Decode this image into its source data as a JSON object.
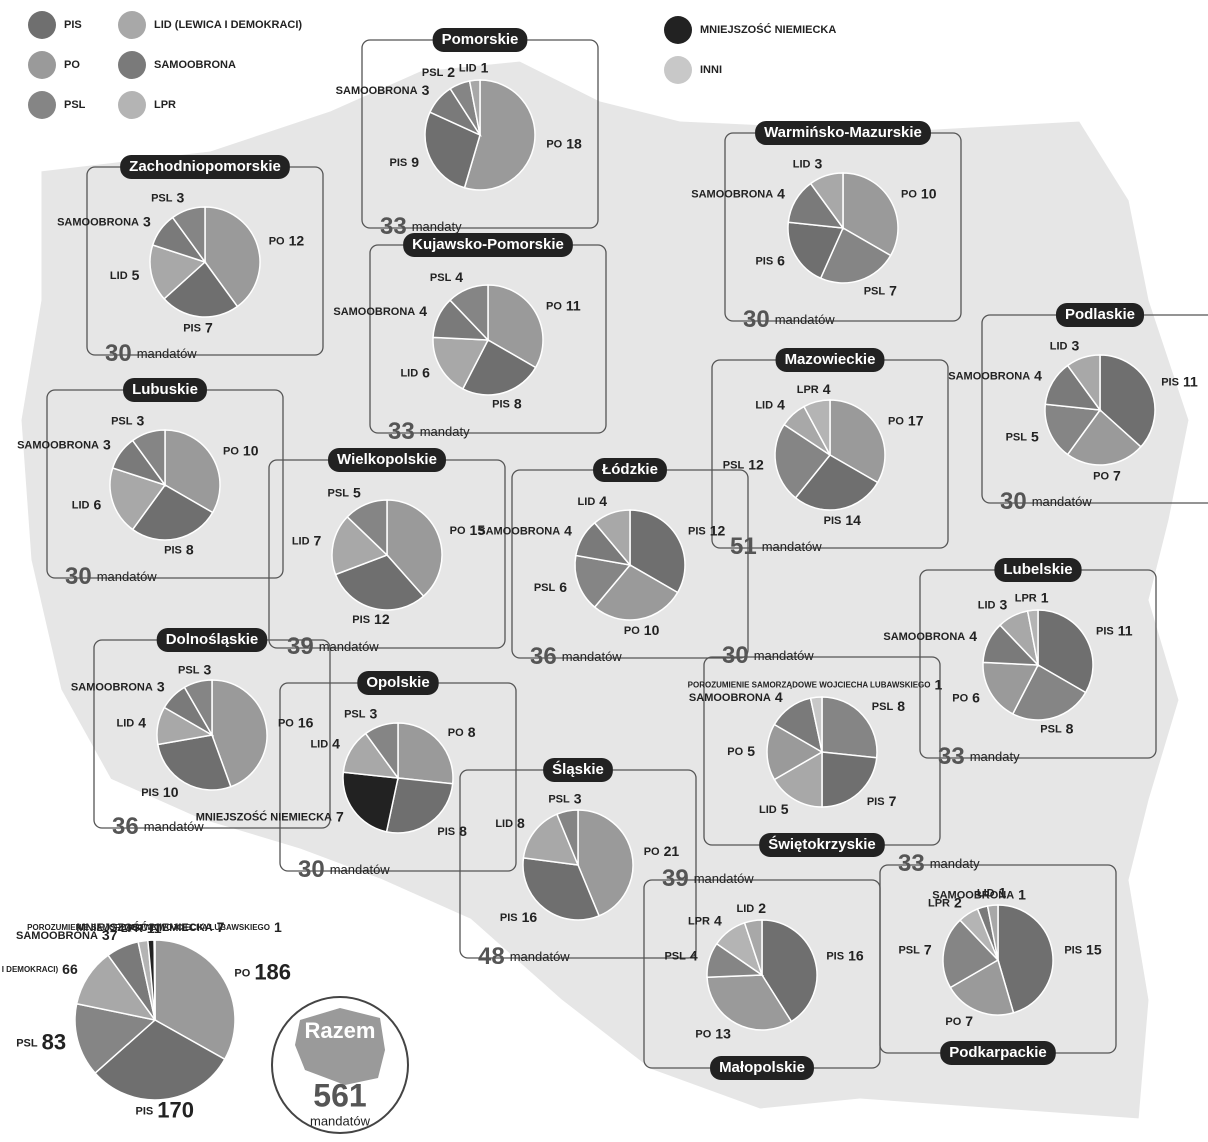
{
  "legend": [
    {
      "name": "PIS",
      "color": "#6f6f6f"
    },
    {
      "name": "PO",
      "color": "#9a9a9a"
    },
    {
      "name": "PSL",
      "color": "#858585"
    },
    {
      "name": "LID (LEWICA I DEMOKRACI)",
      "color": "#a8a8a8"
    },
    {
      "name": "SAMOOBRONA",
      "color": "#7a7a7a"
    },
    {
      "name": "LPR",
      "color": "#b4b4b4"
    },
    {
      "name": "MNIEJSZOŚĆ NIEMIECKA",
      "color": "#222222"
    },
    {
      "name": "INNI",
      "color": "#c8c8c8"
    }
  ],
  "total": {
    "title": "Razem",
    "seats": 561,
    "seats_label": "mandatów"
  },
  "chart_data": [
    {
      "type": "pie",
      "title": "Pomorskie",
      "seats": 33,
      "seats_label": "mandaty",
      "categories": [
        "PO",
        "PIS",
        "SAMOOBRONA",
        "PSL",
        "LID"
      ],
      "values": [
        18,
        9,
        3,
        2,
        1
      ],
      "colors": [
        "#9a9a9a",
        "#6f6f6f",
        "#7a7a7a",
        "#858585",
        "#a8a8a8"
      ]
    },
    {
      "type": "pie",
      "title": "Zachodniopomorskie",
      "seats": 30,
      "seats_label": "mandatów",
      "categories": [
        "PO",
        "PIS",
        "LID",
        "SAMOOBRONA",
        "PSL"
      ],
      "values": [
        12,
        7,
        5,
        3,
        3
      ],
      "colors": [
        "#9a9a9a",
        "#6f6f6f",
        "#a8a8a8",
        "#7a7a7a",
        "#858585"
      ]
    },
    {
      "type": "pie",
      "title": "Warmińsko-Mazurskie",
      "seats": 30,
      "seats_label": "mandatów",
      "categories": [
        "PO",
        "PSL",
        "PIS",
        "SAMOOBRONA",
        "LID"
      ],
      "values": [
        10,
        7,
        6,
        4,
        3
      ],
      "colors": [
        "#9a9a9a",
        "#858585",
        "#6f6f6f",
        "#7a7a7a",
        "#a8a8a8"
      ]
    },
    {
      "type": "pie",
      "title": "Kujawsko-Pomorskie",
      "seats": 33,
      "seats_label": "mandaty",
      "categories": [
        "PO",
        "PIS",
        "LID",
        "SAMOOBRONA",
        "PSL"
      ],
      "values": [
        11,
        8,
        6,
        4,
        4
      ],
      "colors": [
        "#9a9a9a",
        "#6f6f6f",
        "#a8a8a8",
        "#7a7a7a",
        "#858585"
      ]
    },
    {
      "type": "pie",
      "title": "Mazowieckie",
      "seats": 51,
      "seats_label": "mandatów",
      "categories": [
        "PO",
        "PIS",
        "PSL",
        "LID",
        "LPR"
      ],
      "values": [
        17,
        14,
        12,
        4,
        4
      ],
      "colors": [
        "#9a9a9a",
        "#6f6f6f",
        "#858585",
        "#a8a8a8",
        "#b4b4b4"
      ]
    },
    {
      "type": "pie",
      "title": "Podlaskie",
      "seats": 30,
      "seats_label": "mandatów",
      "categories": [
        "PIS",
        "PO",
        "PSL",
        "SAMOOBRONA",
        "LID"
      ],
      "values": [
        11,
        7,
        5,
        4,
        3
      ],
      "colors": [
        "#6f6f6f",
        "#9a9a9a",
        "#858585",
        "#7a7a7a",
        "#a8a8a8"
      ]
    },
    {
      "type": "pie",
      "title": "Lubuskie",
      "seats": 30,
      "seats_label": "mandatów",
      "categories": [
        "PO",
        "PIS",
        "LID",
        "SAMOOBRONA",
        "PSL"
      ],
      "values": [
        10,
        8,
        6,
        3,
        3
      ],
      "colors": [
        "#9a9a9a",
        "#6f6f6f",
        "#a8a8a8",
        "#7a7a7a",
        "#858585"
      ]
    },
    {
      "type": "pie",
      "title": "Wielkopolskie",
      "seats": 39,
      "seats_label": "mandatów",
      "categories": [
        "PO",
        "PIS",
        "LID",
        "PSL"
      ],
      "values": [
        15,
        12,
        7,
        5
      ],
      "colors": [
        "#9a9a9a",
        "#6f6f6f",
        "#a8a8a8",
        "#858585"
      ]
    },
    {
      "type": "pie",
      "title": "Łódzkie",
      "seats": 36,
      "seats_label": "mandatów",
      "categories": [
        "PIS",
        "PO",
        "PSL",
        "SAMOOBRONA",
        "LID"
      ],
      "values": [
        12,
        10,
        6,
        4,
        4
      ],
      "colors": [
        "#6f6f6f",
        "#9a9a9a",
        "#858585",
        "#7a7a7a",
        "#a8a8a8"
      ]
    },
    {
      "type": "pie",
      "title": "Lubelskie",
      "seats": 33,
      "seats_label": "mandaty",
      "categories": [
        "PIS",
        "PSL",
        "PO",
        "SAMOOBRONA",
        "LID",
        "LPR"
      ],
      "values": [
        11,
        8,
        6,
        4,
        3,
        1
      ],
      "colors": [
        "#6f6f6f",
        "#858585",
        "#9a9a9a",
        "#7a7a7a",
        "#a8a8a8",
        "#b4b4b4"
      ]
    },
    {
      "type": "pie",
      "title": "Dolnośląskie",
      "seats": 36,
      "seats_label": "mandatów",
      "categories": [
        "PO",
        "PIS",
        "LID",
        "SAMOOBRONA",
        "PSL"
      ],
      "values": [
        16,
        10,
        4,
        3,
        3
      ],
      "colors": [
        "#9a9a9a",
        "#6f6f6f",
        "#a8a8a8",
        "#7a7a7a",
        "#858585"
      ]
    },
    {
      "type": "pie",
      "title": "Opolskie",
      "seats": 30,
      "seats_label": "mandatów",
      "categories": [
        "PO",
        "PIS",
        "MNIEJSZOŚĆ NIEMIECKA",
        "LID",
        "PSL"
      ],
      "values": [
        8,
        8,
        7,
        4,
        3
      ],
      "colors": [
        "#9a9a9a",
        "#6f6f6f",
        "#222222",
        "#a8a8a8",
        "#858585"
      ]
    },
    {
      "type": "pie",
      "title": "Świętokrzyskie",
      "seats": 30,
      "seats_label": "mandatów",
      "categories": [
        "PSL",
        "PIS",
        "LID",
        "PO",
        "SAMOOBRONA",
        "POROZUMIENIE SAMORZĄDOWE WOJCIECHA LUBAWSKIEGO"
      ],
      "values": [
        8,
        7,
        5,
        5,
        4,
        1
      ],
      "colors": [
        "#858585",
        "#6f6f6f",
        "#a8a8a8",
        "#9a9a9a",
        "#7a7a7a",
        "#c8c8c8"
      ]
    },
    {
      "type": "pie",
      "title": "Śląskie",
      "seats": 48,
      "seats_label": "mandatów",
      "categories": [
        "PO",
        "PIS",
        "LID",
        "PSL"
      ],
      "values": [
        21,
        16,
        8,
        3
      ],
      "colors": [
        "#9a9a9a",
        "#6f6f6f",
        "#a8a8a8",
        "#858585"
      ]
    },
    {
      "type": "pie",
      "title": "Małopolskie",
      "seats": 39,
      "seats_label": "mandatów",
      "categories": [
        "PIS",
        "PO",
        "PSL",
        "LPR",
        "LID"
      ],
      "values": [
        16,
        13,
        4,
        4,
        2
      ],
      "colors": [
        "#6f6f6f",
        "#9a9a9a",
        "#858585",
        "#b4b4b4",
        "#a8a8a8"
      ]
    },
    {
      "type": "pie",
      "title": "Podkarpackie",
      "seats": 33,
      "seats_label": "mandaty",
      "categories": [
        "PIS",
        "PO",
        "PSL",
        "LPR",
        "SAMOOBRONA",
        "LID"
      ],
      "values": [
        15,
        7,
        7,
        2,
        1,
        1
      ],
      "colors": [
        "#6f6f6f",
        "#9a9a9a",
        "#858585",
        "#b4b4b4",
        "#7a7a7a",
        "#a8a8a8"
      ]
    },
    {
      "type": "pie",
      "categories": [
        "PO",
        "PIS",
        "PSL",
        "LID (LEWICA I DEMOKRACI)",
        "SAMOOBRONA",
        "LPR",
        "MNIEJSZOŚĆ NIEMIECKA",
        "POROZUMIENIE SAMORZĄDOWE WOJCIECHA LUBAWSKIEGO"
      ],
      "values": [
        186,
        170,
        83,
        66,
        37,
        11,
        7,
        1
      ],
      "colors": [
        "#9a9a9a",
        "#6f6f6f",
        "#858585",
        "#a8a8a8",
        "#7a7a7a",
        "#b4b4b4",
        "#222222",
        "#c8c8c8"
      ]
    }
  ]
}
